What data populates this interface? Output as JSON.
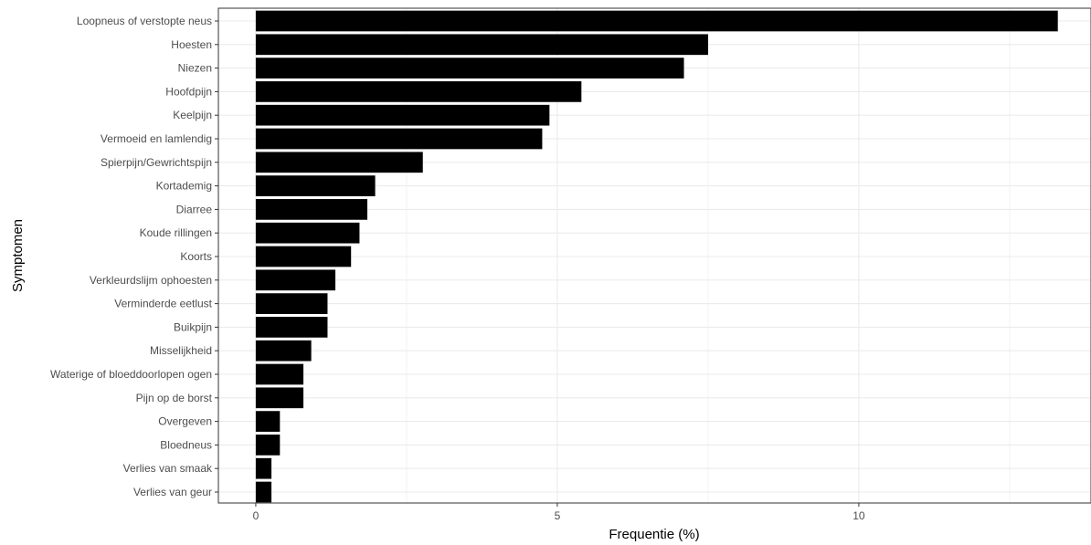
{
  "chart_data": {
    "type": "bar",
    "orientation": "horizontal",
    "title": "",
    "xlabel": "Frequentie (%)",
    "ylabel": "Symptomen",
    "xlim": [
      -0.62,
      13.85
    ],
    "xticks": [
      0,
      5,
      10
    ],
    "grid": true,
    "legend": "none",
    "bar_color": "#000000",
    "categories": [
      "Loopneus of verstopte neus",
      "Hoesten",
      "Niezen",
      "Hoofdpijn",
      "Keelpijn",
      "Vermoeid en lamlendig",
      "Spierpijn/Gewrichtspijn",
      "Kortademig",
      "Diarree",
      "Koude rillingen",
      "Koorts",
      "Verkleurdslijm ophoesten",
      "Verminderde eetlust",
      "Buikpijn",
      "Misselijkheid",
      "Waterige of bloeddoorlopen ogen",
      "Pijn op de borst",
      "Overgeven",
      "Bloedneus",
      "Verlies van smaak",
      "Verlies van geur"
    ],
    "values": [
      13.3,
      7.5,
      7.1,
      5.4,
      4.87,
      4.75,
      2.77,
      1.98,
      1.85,
      1.72,
      1.58,
      1.32,
      1.19,
      1.19,
      0.92,
      0.79,
      0.79,
      0.4,
      0.4,
      0.26,
      0.26
    ]
  }
}
